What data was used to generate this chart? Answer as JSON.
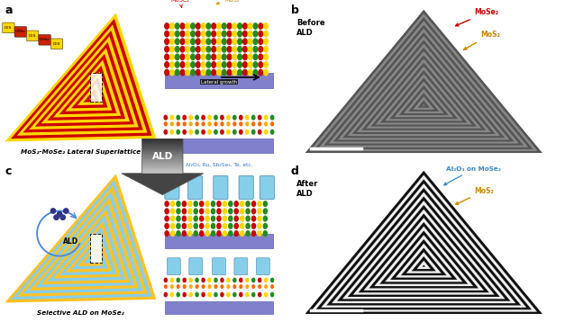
{
  "panel_a_label": "a",
  "panel_b_label": "b",
  "panel_c_label": "c",
  "panel_d_label": "d",
  "panel_a_title": "MoS₂-MoSe₂ Lateral Superlattice",
  "panel_c_title": "Selective ALD on MoSe₂",
  "panel_b_text_before": "Before\nALD",
  "panel_d_text_after": "After\nALD",
  "arrow_label": "ALD",
  "lateral_growth_label": "Lateral growth",
  "ald_material_label": "Al₂O₃, Ru, Sb₂Se₃, Te, etc.",
  "mose2_label": "MoSe₂",
  "mos2_label": "MoS₂",
  "al2o3_label": "Al₂O₃ on MoSe₂",
  "color_yellow": "#FFD700",
  "color_red": "#CC0000",
  "color_gold": "#FFA500",
  "color_blue_stripe": "#87CEEB",
  "color_gold_stripe": "#FFC125",
  "color_purple_sub": "#8080CC",
  "sem_b_dark": "#555555",
  "sem_b_light": "#888888",
  "sem_d_dark": "#111111",
  "sem_d_light": "#EEEEEE",
  "n_stripes_ab": 25,
  "n_stripes_cd": 22
}
